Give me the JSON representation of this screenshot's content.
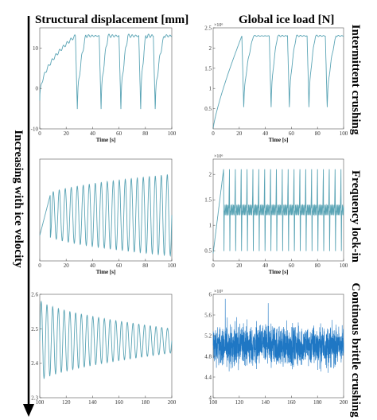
{
  "headers": {
    "left": "Structural displacement [mm]",
    "right": "Global ice load [N]"
  },
  "side_label": "Increasing with ice velocity",
  "row_labels": [
    "Intermittent crushing",
    "Frequency lock-in",
    "Continous brittle crushing"
  ],
  "colors": {
    "line": "#5aa4b5",
    "noise": "#1f77c4",
    "axis": "#555555",
    "arrow": "#000000"
  },
  "chart_data": [
    {
      "id": "disp-intermittent",
      "type": "line",
      "xlabel": "Time [s]",
      "ylabel": "",
      "xlim": [
        0,
        100
      ],
      "ylim": [
        -10,
        15
      ],
      "xticks": [
        0,
        20,
        40,
        60,
        80,
        100
      ],
      "yticks": [
        -10,
        0,
        10
      ],
      "yexponent": "",
      "signal": {
        "pattern": "intermittent",
        "t0": 0,
        "t1": 100,
        "start": -3,
        "peak": 13,
        "drops": [
          27,
          45,
          60,
          75,
          86
        ],
        "dip": -6
      }
    },
    {
      "id": "load-intermittent",
      "type": "line",
      "xlabel": "Time [s]",
      "ylabel": "",
      "xlim": [
        0,
        100
      ],
      "ylim": [
        0,
        2.5
      ],
      "xticks": [
        0,
        20,
        40,
        60,
        80,
        100
      ],
      "yticks": [
        0.5,
        1,
        1.5,
        2,
        2.5
      ],
      "yexponent": "×10⁶",
      "signal": {
        "pattern": "sawtooth",
        "t0": 0,
        "t1": 100,
        "start": 0,
        "peak": 2.3,
        "drops": [
          22,
          43,
          57,
          72,
          86
        ],
        "dip": 0.45
      }
    },
    {
      "id": "disp-lockin",
      "type": "line",
      "xlabel": "Time [s]",
      "ylabel": "",
      "xlim": [
        0,
        100
      ],
      "ylim": [
        -15,
        25
      ],
      "xticks": [
        0,
        20,
        40,
        60,
        80,
        100
      ],
      "yticks": [],
      "yexponent": "",
      "signal": {
        "pattern": "growing-sine",
        "t0": 0,
        "t1": 100,
        "mean": 3,
        "amp_start": 6,
        "amp_end": 16,
        "cycles": 22,
        "ramp_end": 8
      }
    },
    {
      "id": "load-lockin",
      "type": "line",
      "xlabel": "Time [s]",
      "ylabel": "",
      "xlim": [
        0,
        100
      ],
      "ylim": [
        0.3,
        2.3
      ],
      "xticks": [
        0,
        20,
        40,
        60,
        80,
        100
      ],
      "yticks": [
        0.5,
        1,
        1.5,
        2
      ],
      "yexponent": "×10⁶",
      "signal": {
        "pattern": "spike-train",
        "t0": 0,
        "t1": 100,
        "base": 1.3,
        "spike": 2.1,
        "low": 0.45,
        "period": 4.5,
        "ramp_end": 8
      }
    },
    {
      "id": "disp-brittle",
      "type": "line",
      "xlabel": "",
      "ylabel": "",
      "xlim": [
        100,
        200
      ],
      "ylim": [
        2.3,
        2.6
      ],
      "xticks": [
        100,
        120,
        140,
        160,
        180,
        200
      ],
      "yticks": [
        2.3,
        2.4,
        2.5,
        2.6
      ],
      "yexponent": "",
      "signal": {
        "pattern": "decaying-sine",
        "t0": 100,
        "t1": 200,
        "mean": 2.465,
        "amp_start": 0.12,
        "amp_end": 0.035,
        "cycles": 23
      }
    },
    {
      "id": "load-brittle",
      "type": "line",
      "xlabel": "",
      "ylabel": "",
      "xlim": [
        100,
        200
      ],
      "ylim": [
        4.0,
        6.0
      ],
      "xticks": [
        100,
        120,
        140,
        160,
        180,
        200
      ],
      "yticks": [
        4.0,
        4.4,
        4.8,
        5.2,
        5.6,
        6.0
      ],
      "yexponent": "×10⁵",
      "signal": {
        "pattern": "noise",
        "t0": 100,
        "t1": 200,
        "mean": 5.0,
        "amp": 0.55
      }
    }
  ]
}
